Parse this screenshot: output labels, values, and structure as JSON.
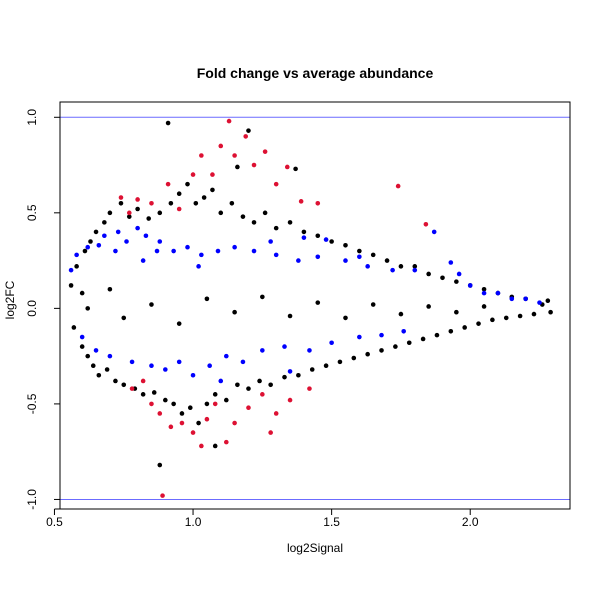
{
  "chart_data": {
    "type": "scatter",
    "title": "Fold change vs average abundance",
    "xlabel": "log2Signal",
    "ylabel": "log2FC",
    "xlim": [
      0.52,
      2.36
    ],
    "ylim": [
      -1.05,
      1.08
    ],
    "x_ticks": [
      0.5,
      1.0,
      1.5,
      2.0
    ],
    "x_tick_labels": [
      "0.5",
      "1.0",
      "1.5",
      "2.0"
    ],
    "y_ticks": [
      -1.0,
      -0.5,
      0.0,
      0.5,
      1.0
    ],
    "y_tick_labels": [
      "-1.0",
      "-0.5",
      "0.0",
      "0.5",
      "1.0"
    ],
    "grid": false,
    "hlines": [
      {
        "y": 1.0,
        "color": "#6b6bff"
      },
      {
        "y": -1.0,
        "color": "#6b6bff"
      }
    ],
    "series": [
      {
        "color": "#000000",
        "points": [
          [
            0.56,
            0.12
          ],
          [
            0.57,
            -0.1
          ],
          [
            0.58,
            0.22
          ],
          [
            0.6,
            -0.2
          ],
          [
            0.61,
            0.3
          ],
          [
            0.62,
            -0.25
          ],
          [
            0.63,
            0.35
          ],
          [
            0.64,
            -0.3
          ],
          [
            0.65,
            0.4
          ],
          [
            0.66,
            -0.35
          ],
          [
            0.68,
            0.45
          ],
          [
            0.69,
            -0.32
          ],
          [
            0.7,
            0.5
          ],
          [
            0.72,
            -0.38
          ],
          [
            0.74,
            0.55
          ],
          [
            0.75,
            -0.4
          ],
          [
            0.77,
            0.48
          ],
          [
            0.79,
            -0.42
          ],
          [
            0.8,
            0.52
          ],
          [
            0.82,
            -0.45
          ],
          [
            0.84,
            0.47
          ],
          [
            0.86,
            -0.44
          ],
          [
            0.88,
            0.5
          ],
          [
            0.9,
            -0.48
          ],
          [
            0.92,
            0.55
          ],
          [
            0.93,
            -0.5
          ],
          [
            0.95,
            0.6
          ],
          [
            0.96,
            -0.55
          ],
          [
            0.98,
            0.65
          ],
          [
            0.99,
            -0.52
          ],
          [
            1.01,
            0.55
          ],
          [
            1.02,
            -0.6
          ],
          [
            1.04,
            0.58
          ],
          [
            1.05,
            -0.5
          ],
          [
            1.07,
            0.62
          ],
          [
            1.08,
            -0.45
          ],
          [
            1.1,
            0.5
          ],
          [
            1.12,
            -0.48
          ],
          [
            1.14,
            0.55
          ],
          [
            1.16,
            -0.4
          ],
          [
            1.18,
            0.48
          ],
          [
            1.2,
            -0.42
          ],
          [
            1.22,
            0.45
          ],
          [
            1.24,
            -0.38
          ],
          [
            1.26,
            0.5
          ],
          [
            1.28,
            -0.4
          ],
          [
            1.3,
            0.42
          ],
          [
            1.33,
            -0.36
          ],
          [
            1.35,
            0.45
          ],
          [
            1.38,
            -0.35
          ],
          [
            1.4,
            0.4
          ],
          [
            1.43,
            -0.32
          ],
          [
            1.45,
            0.38
          ],
          [
            1.48,
            -0.3
          ],
          [
            1.5,
            0.35
          ],
          [
            1.53,
            -0.28
          ],
          [
            1.55,
            0.33
          ],
          [
            1.58,
            -0.26
          ],
          [
            1.6,
            0.3
          ],
          [
            1.63,
            -0.24
          ],
          [
            1.65,
            0.28
          ],
          [
            1.68,
            -0.22
          ],
          [
            1.7,
            0.25
          ],
          [
            1.73,
            -0.2
          ],
          [
            1.75,
            0.22
          ],
          [
            1.78,
            -0.18
          ],
          [
            1.8,
            0.22
          ],
          [
            1.83,
            -0.16
          ],
          [
            1.85,
            0.18
          ],
          [
            1.88,
            -0.14
          ],
          [
            1.9,
            0.16
          ],
          [
            1.93,
            -0.12
          ],
          [
            1.95,
            0.14
          ],
          [
            1.98,
            -0.1
          ],
          [
            2.0,
            0.12
          ],
          [
            2.03,
            -0.08
          ],
          [
            2.05,
            0.1
          ],
          [
            2.08,
            -0.06
          ],
          [
            2.1,
            0.08
          ],
          [
            2.13,
            -0.05
          ],
          [
            2.15,
            0.06
          ],
          [
            2.18,
            -0.04
          ],
          [
            2.2,
            0.05
          ],
          [
            2.23,
            -0.03
          ],
          [
            2.26,
            0.02
          ],
          [
            2.28,
            0.04
          ],
          [
            2.29,
            -0.02
          ],
          [
            0.91,
            0.97
          ],
          [
            1.2,
            0.93
          ],
          [
            1.37,
            0.73
          ],
          [
            1.08,
            -0.72
          ],
          [
            0.88,
            -0.82
          ],
          [
            1.16,
            0.74
          ],
          [
            0.6,
            0.08
          ],
          [
            0.62,
            0.0
          ],
          [
            0.7,
            0.1
          ],
          [
            0.75,
            -0.05
          ],
          [
            0.85,
            0.02
          ],
          [
            0.95,
            -0.08
          ],
          [
            1.05,
            0.05
          ],
          [
            1.15,
            -0.02
          ],
          [
            1.25,
            0.06
          ],
          [
            1.35,
            -0.04
          ],
          [
            1.45,
            0.03
          ],
          [
            1.55,
            -0.05
          ],
          [
            1.65,
            0.02
          ],
          [
            1.75,
            -0.03
          ],
          [
            1.85,
            0.01
          ],
          [
            1.95,
            -0.02
          ],
          [
            2.05,
            0.01
          ]
        ]
      },
      {
        "color": "#0000ff",
        "points": [
          [
            0.56,
            0.2
          ],
          [
            0.58,
            0.28
          ],
          [
            0.6,
            -0.15
          ],
          [
            0.62,
            0.32
          ],
          [
            0.65,
            -0.22
          ],
          [
            0.68,
            0.38
          ],
          [
            0.7,
            -0.25
          ],
          [
            0.73,
            0.4
          ],
          [
            0.76,
            0.35
          ],
          [
            0.78,
            -0.28
          ],
          [
            0.8,
            0.42
          ],
          [
            0.83,
            0.38
          ],
          [
            0.85,
            -0.3
          ],
          [
            0.88,
            0.35
          ],
          [
            0.9,
            -0.32
          ],
          [
            0.93,
            0.3
          ],
          [
            0.95,
            -0.28
          ],
          [
            0.98,
            0.32
          ],
          [
            1.0,
            -0.35
          ],
          [
            1.03,
            0.28
          ],
          [
            1.06,
            -0.3
          ],
          [
            1.09,
            0.3
          ],
          [
            1.12,
            -0.25
          ],
          [
            1.15,
            0.32
          ],
          [
            1.18,
            -0.28
          ],
          [
            1.22,
            0.3
          ],
          [
            1.25,
            -0.22
          ],
          [
            1.3,
            0.28
          ],
          [
            1.33,
            -0.2
          ],
          [
            1.38,
            0.25
          ],
          [
            1.42,
            -0.22
          ],
          [
            1.45,
            0.27
          ],
          [
            1.5,
            -0.18
          ],
          [
            1.55,
            0.25
          ],
          [
            1.6,
            -0.15
          ],
          [
            1.63,
            0.22
          ],
          [
            1.68,
            -0.14
          ],
          [
            1.72,
            0.2
          ],
          [
            1.76,
            -0.12
          ],
          [
            1.8,
            0.2
          ],
          [
            1.87,
            0.4
          ],
          [
            1.93,
            0.24
          ],
          [
            1.96,
            0.18
          ],
          [
            2.0,
            0.12
          ],
          [
            2.05,
            0.08
          ],
          [
            2.1,
            0.08
          ],
          [
            2.15,
            0.05
          ],
          [
            2.2,
            0.05
          ],
          [
            2.25,
            0.03
          ],
          [
            1.48,
            0.36
          ],
          [
            1.4,
            0.37
          ],
          [
            1.6,
            0.27
          ],
          [
            0.82,
            0.25
          ],
          [
            0.87,
            0.3
          ],
          [
            1.02,
            0.22
          ],
          [
            1.28,
            0.35
          ],
          [
            0.72,
            0.3
          ],
          [
            0.66,
            0.33
          ],
          [
            1.1,
            -0.38
          ],
          [
            1.35,
            -0.33
          ]
        ]
      },
      {
        "color": "#dd1133",
        "points": [
          [
            0.74,
            0.58
          ],
          [
            0.77,
            0.5
          ],
          [
            0.8,
            0.57
          ],
          [
            0.85,
            0.55
          ],
          [
            0.91,
            0.65
          ],
          [
            0.95,
            0.52
          ],
          [
            1.0,
            0.7
          ],
          [
            1.03,
            0.8
          ],
          [
            1.07,
            0.7
          ],
          [
            1.1,
            0.85
          ],
          [
            1.13,
            0.98
          ],
          [
            1.15,
            0.8
          ],
          [
            1.19,
            0.9
          ],
          [
            1.22,
            0.75
          ],
          [
            1.26,
            0.82
          ],
          [
            1.3,
            0.65
          ],
          [
            1.34,
            0.74
          ],
          [
            1.39,
            0.56
          ],
          [
            1.45,
            0.55
          ],
          [
            1.74,
            0.64
          ],
          [
            1.84,
            0.44
          ],
          [
            0.85,
            -0.5
          ],
          [
            0.88,
            -0.55
          ],
          [
            0.92,
            -0.62
          ],
          [
            0.96,
            -0.6
          ],
          [
            1.0,
            -0.65
          ],
          [
            1.03,
            -0.72
          ],
          [
            1.05,
            -0.58
          ],
          [
            1.12,
            -0.7
          ],
          [
            1.15,
            -0.6
          ],
          [
            1.2,
            -0.52
          ],
          [
            1.25,
            -0.45
          ],
          [
            1.3,
            -0.55
          ],
          [
            1.35,
            -0.48
          ],
          [
            1.42,
            -0.42
          ],
          [
            0.78,
            -0.42
          ],
          [
            0.82,
            -0.38
          ],
          [
            1.08,
            -0.5
          ],
          [
            1.28,
            -0.65
          ],
          [
            0.89,
            -0.98
          ]
        ]
      }
    ]
  }
}
